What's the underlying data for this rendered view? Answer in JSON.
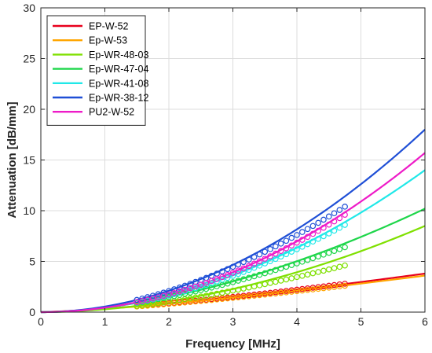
{
  "chart_data": {
    "type": "line",
    "xlabel": "Frequency [MHz]",
    "ylabel": "Attenuation [dB/mm]",
    "xlim": [
      0,
      6
    ],
    "ylim": [
      0,
      30
    ],
    "xticks": [
      0,
      1,
      2,
      3,
      4,
      5,
      6
    ],
    "yticks": [
      0,
      5,
      10,
      15,
      20,
      25,
      30
    ],
    "grid": true,
    "legend_position": "top-left",
    "series": [
      {
        "name": "EP-W-52",
        "color": "#e8001c",
        "fit_end": [
          6,
          3.8
        ],
        "exponent": 1.35,
        "marker_range": [
          1.5,
          4.75
        ],
        "markers_end": 2.8
      },
      {
        "name": "Ep-W-53",
        "color": "#ffa500",
        "fit_end": [
          6,
          3.6
        ],
        "exponent": 1.35,
        "marker_range": [
          1.5,
          4.75
        ],
        "markers_end": 2.6
      },
      {
        "name": "Ep-WR-48-03",
        "color": "#7fe000",
        "fit_end": [
          6,
          8.5
        ],
        "exponent": 1.9,
        "marker_range": [
          1.5,
          4.75
        ],
        "markers_end": 4.6
      },
      {
        "name": "Ep-WR-47-04",
        "color": "#1ed64a",
        "fit_end": [
          6,
          10.2
        ],
        "exponent": 1.75,
        "marker_range": [
          1.5,
          4.75
        ],
        "markers_end": 6.4
      },
      {
        "name": "Ep-WR-41-08",
        "color": "#20e8e8",
        "fit_end": [
          6,
          14.0
        ],
        "exponent": 1.95,
        "marker_range": [
          1.5,
          4.75
        ],
        "markers_end": 8.6
      },
      {
        "name": "Ep-WR-38-12",
        "color": "#1f4fd6",
        "fit_end": [
          6,
          18.0
        ],
        "exponent": 1.95,
        "marker_range": [
          1.5,
          4.75
        ],
        "markers_end": 10.4
      },
      {
        "name": "PU2-W-52",
        "color": "#ee1bc8",
        "fit_end": [
          6,
          15.7
        ],
        "exponent": 2.0,
        "marker_range": [
          1.5,
          4.75
        ],
        "markers_end": 9.6
      }
    ]
  }
}
